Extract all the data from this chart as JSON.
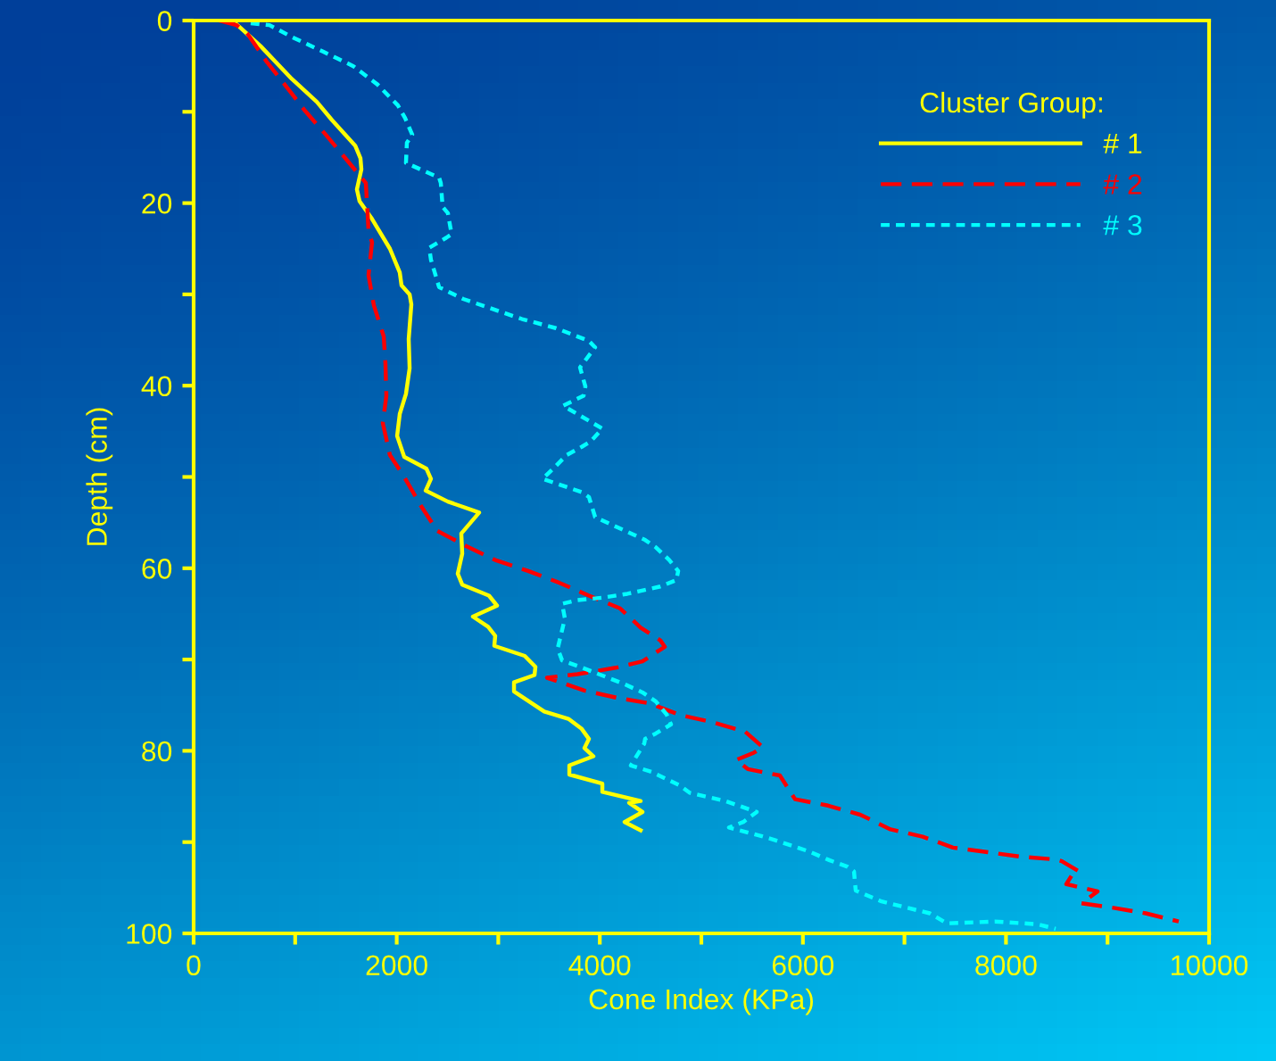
{
  "chart_data": {
    "type": "line",
    "xlabel": "Cone Index (KPa)",
    "ylabel": "Depth (cm)",
    "legend_title": "Cluster Group:",
    "legend": "top right",
    "grid": false,
    "marker": "none",
    "xlim": [
      0,
      10000
    ],
    "ylim": [
      100,
      0
    ],
    "xticks": [
      0,
      {
        "value": 1000,
        "label": null
      },
      2000,
      {
        "value": 3000,
        "label": null
      },
      4000,
      {
        "value": 5000,
        "label": null
      },
      6000,
      {
        "value": 7000,
        "label": null
      },
      8000,
      {
        "value": 9000,
        "label": null
      },
      10000
    ],
    "yticks": [
      0,
      {
        "value": 10,
        "label": null
      },
      20,
      {
        "value": 30,
        "label": null
      },
      40,
      {
        "value": 50,
        "label": null
      },
      60,
      {
        "value": 70,
        "label": null
      },
      80,
      {
        "value": 90,
        "label": null
      },
      100
    ],
    "series": [
      {
        "name": "# 1",
        "color": "#ffff00",
        "line_style": "solid",
        "x": [
          422,
          659,
          967,
          1213,
          1362,
          1591,
          1643,
          1652,
          1608,
          1634,
          1749,
          1933,
          2030,
          2047,
          2127,
          2144,
          2118,
          2127,
          2091,
          2030,
          2004,
          2074,
          2293,
          2337,
          2285,
          2504,
          2812,
          2636,
          2645,
          2601,
          2645,
          2909,
          2988,
          2750,
          2900,
          2970,
          2961,
          3260,
          3366,
          3357,
          3155,
          3155,
          3453,
          3691,
          3822,
          3893,
          3849,
          3937,
          3700,
          3700,
          4025,
          4025,
          4402,
          4288,
          4420,
          4244,
          4402
        ],
        "values": [
          0.4,
          2.8,
          6.4,
          8.9,
          10.9,
          13.7,
          15.1,
          16.3,
          18.5,
          19.8,
          21.6,
          25.0,
          27.6,
          29.0,
          30.0,
          31.1,
          34.9,
          38.1,
          40.9,
          43.1,
          45.5,
          47.8,
          49.1,
          50.2,
          51.5,
          52.7,
          53.9,
          56.2,
          58.4,
          60.6,
          61.8,
          63.0,
          64.1,
          65.3,
          66.4,
          67.4,
          68.5,
          69.6,
          70.8,
          71.7,
          72.5,
          73.5,
          75.7,
          76.5,
          77.6,
          78.7,
          79.7,
          80.6,
          81.6,
          82.6,
          83.6,
          84.5,
          85.5,
          85.7,
          86.7,
          87.8,
          88.7
        ]
      },
      {
        "name": "# 2",
        "color": "#ff0000",
        "line_style": "dashed",
        "x": [
          255,
          422,
          527,
          712,
          896,
          1098,
          1301,
          1503,
          1696,
          1714,
          1722,
          1757,
          1722,
          1775,
          1872,
          1889,
          1898,
          1863,
          1933,
          2074,
          2241,
          2399,
          2689,
          2970,
          3295,
          3603,
          3893,
          4200,
          4402,
          4596,
          4640,
          4420,
          4156,
          3779,
          3480,
          3849,
          4174,
          4490,
          4798,
          5123,
          5431,
          5606,
          5518,
          5343,
          5457,
          5773,
          5923,
          6248,
          6564,
          6696,
          6863,
          7179,
          7478,
          7821,
          8146,
          8489,
          8550,
          8717,
          8656,
          8594,
          8902,
          8743,
          9060,
          9376,
          9701
        ],
        "values": [
          0,
          0.5,
          1.4,
          4.4,
          7.0,
          9.9,
          12.5,
          15.2,
          17.8,
          21.3,
          23.0,
          24.3,
          27.9,
          31.2,
          34.6,
          37.6,
          41.1,
          44.1,
          47.6,
          50.0,
          53.2,
          55.9,
          57.6,
          59.1,
          60.3,
          61.6,
          63.0,
          64.4,
          66.5,
          67.9,
          68.6,
          70.2,
          70.9,
          71.6,
          72.0,
          73.4,
          74.2,
          74.8,
          76.1,
          76.9,
          77.9,
          79.6,
          80.2,
          81.0,
          82.0,
          82.7,
          85.3,
          86.0,
          87.0,
          87.7,
          88.6,
          89.4,
          90.6,
          91.1,
          91.6,
          91.9,
          92.1,
          93.2,
          93.5,
          94.6,
          95.4,
          96.7,
          97.2,
          97.8,
          98.7
        ]
      },
      {
        "name": "# 3",
        "color": "#00ffff",
        "line_style": "dotted",
        "x": [
          562,
          747,
          967,
          1274,
          1573,
          1810,
          2012,
          2083,
          2153,
          2100,
          2091,
          2417,
          2434,
          2452,
          2504,
          2540,
          2487,
          2320,
          2337,
          2417,
          2654,
          3234,
          3568,
          3893,
          3954,
          3805,
          3858,
          3840,
          3638,
          4025,
          3910,
          3822,
          3673,
          3568,
          3436,
          3568,
          3831,
          3893,
          3954,
          4130,
          4446,
          4552,
          4684,
          4772,
          4754,
          4596,
          4394,
          4271,
          4042,
          3779,
          3629,
          3656,
          3585,
          3629,
          3805,
          4244,
          4420,
          4552,
          4657,
          4701,
          4552,
          4446,
          4438,
          4306,
          4508,
          4789,
          4886,
          5237,
          5545,
          5413,
          5272,
          5580,
          5729,
          6054,
          6265,
          6441,
          6503,
          6520,
          6775,
          7250,
          7417,
          7891,
          8313,
          8489
        ],
        "values": [
          0.3,
          0.5,
          1.8,
          3.4,
          5.0,
          7.0,
          9.3,
          10.7,
          12.5,
          13.4,
          15.6,
          17.2,
          17.8,
          20.4,
          21.1,
          23.4,
          23.8,
          24.9,
          26.2,
          29.2,
          30.5,
          32.7,
          33.7,
          35.1,
          35.8,
          38.0,
          40.1,
          41.1,
          42.2,
          44.7,
          46.1,
          46.7,
          47.6,
          48.8,
          50.2,
          50.7,
          51.7,
          52.2,
          54.4,
          55.3,
          56.9,
          57.7,
          59.1,
          60.3,
          61.3,
          62.0,
          62.5,
          62.8,
          63.2,
          63.5,
          63.9,
          65.5,
          68.8,
          70.1,
          70.8,
          72.7,
          73.6,
          74.6,
          76.0,
          77.1,
          78.1,
          78.7,
          79.2,
          81.6,
          82.3,
          83.8,
          84.6,
          85.5,
          86.7,
          87.8,
          88.4,
          89.3,
          89.8,
          91.0,
          92.0,
          92.7,
          93.2,
          95.3,
          96.5,
          97.8,
          98.9,
          98.7,
          99.0,
          99.5
        ]
      }
    ]
  }
}
